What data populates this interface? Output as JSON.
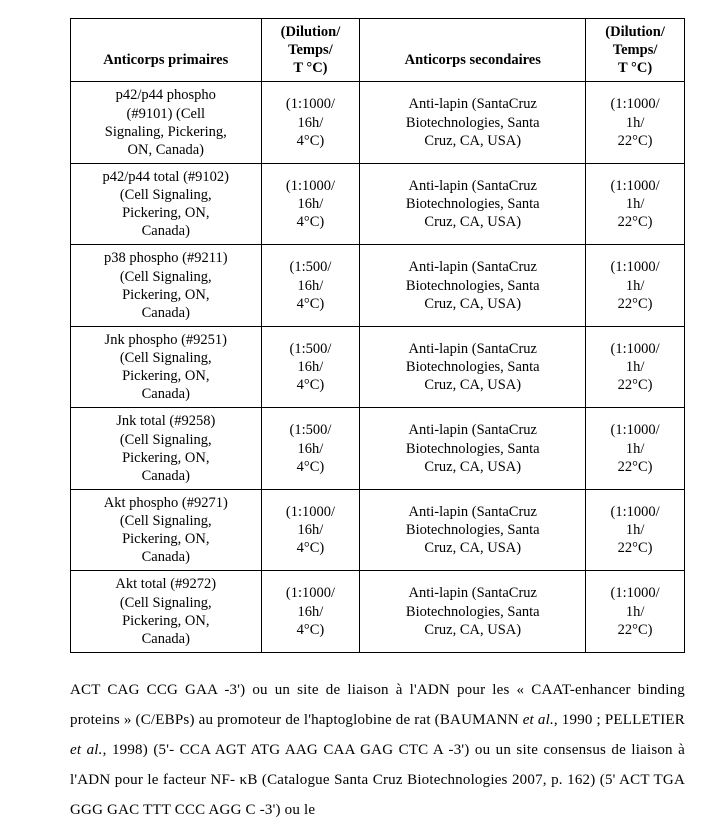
{
  "table": {
    "header": {
      "col1_line2": "Anticorps primaires",
      "col2_line1": "(Dilution/",
      "col2_line2": "Temps/",
      "col2_line3": "T °C)",
      "col3_line2": "Anticorps secondaires",
      "col4_line1": "(Dilution/",
      "col4_line2": "Temps/",
      "col4_line3": "T °C)"
    },
    "rows": [
      {
        "c1_l1": "p42/p44 phospho",
        "c1_l2": "(#9101) (Cell",
        "c1_l3": "Signaling, Pickering,",
        "c1_l4": "ON, Canada)",
        "c2_l1": "(1:1000/",
        "c2_l2": "16h/",
        "c2_l3": "4°C)",
        "c3_l1": "Anti-lapin (SantaCruz",
        "c3_l2": "Biotechnologies, Santa",
        "c3_l3": "Cruz, CA, USA)",
        "c4_l1": "(1:1000/",
        "c4_l2": "1h/",
        "c4_l3": "22°C)"
      },
      {
        "c1_l1": "p42/p44 total (#9102)",
        "c1_l2": "(Cell Signaling,",
        "c1_l3": "Pickering, ON,",
        "c1_l4": "Canada)",
        "c2_l1": "(1:1000/",
        "c2_l2": "16h/",
        "c2_l3": "4°C)",
        "c3_l1": "Anti-lapin (SantaCruz",
        "c3_l2": "Biotechnologies, Santa",
        "c3_l3": "Cruz, CA, USA)",
        "c4_l1": "(1:1000/",
        "c4_l2": "1h/",
        "c4_l3": "22°C)"
      },
      {
        "c1_l1": "p38 phospho (#9211)",
        "c1_l2": "(Cell Signaling,",
        "c1_l3": "Pickering, ON,",
        "c1_l4": "Canada)",
        "c2_l1": "(1:500/",
        "c2_l2": "16h/",
        "c2_l3": "4°C)",
        "c3_l1": "Anti-lapin (SantaCruz",
        "c3_l2": "Biotechnologies, Santa",
        "c3_l3": "Cruz, CA, USA)",
        "c4_l1": "(1:1000/",
        "c4_l2": "1h/",
        "c4_l3": "22°C)"
      },
      {
        "c1_l1": "Jnk phospho (#9251)",
        "c1_l2": "(Cell Signaling,",
        "c1_l3": "Pickering, ON,",
        "c1_l4": "Canada)",
        "c2_l1": "(1:500/",
        "c2_l2": "16h/",
        "c2_l3": "4°C)",
        "c3_l1": "Anti-lapin (SantaCruz",
        "c3_l2": "Biotechnologies, Santa",
        "c3_l3": "Cruz, CA, USA)",
        "c4_l1": "(1:1000/",
        "c4_l2": "1h/",
        "c4_l3": "22°C)"
      },
      {
        "c1_l1": "Jnk total (#9258)",
        "c1_l2": "(Cell Signaling,",
        "c1_l3": "Pickering, ON,",
        "c1_l4": "Canada)",
        "c2_l1": "(1:500/",
        "c2_l2": "16h/",
        "c2_l3": "4°C)",
        "c3_l1": "Anti-lapin (SantaCruz",
        "c3_l2": "Biotechnologies, Santa",
        "c3_l3": "Cruz, CA, USA)",
        "c4_l1": "(1:1000/",
        "c4_l2": "1h/",
        "c4_l3": "22°C)"
      },
      {
        "c1_l1": "Akt phospho (#9271)",
        "c1_l2": "(Cell Signaling,",
        "c1_l3": "Pickering, ON,",
        "c1_l4": "Canada)",
        "c2_l1": "(1:1000/",
        "c2_l2": "16h/",
        "c2_l3": "4°C)",
        "c3_l1": "Anti-lapin (SantaCruz",
        "c3_l2": "Biotechnologies, Santa",
        "c3_l3": "Cruz, CA, USA)",
        "c4_l1": "(1:1000/",
        "c4_l2": "1h/",
        "c4_l3": "22°C)"
      },
      {
        "c1_l1": "Akt total (#9272)",
        "c1_l2": "(Cell Signaling,",
        "c1_l3": "Pickering, ON,",
        "c1_l4": "Canada)",
        "c2_l1": "(1:1000/",
        "c2_l2": "16h/",
        "c2_l3": "4°C)",
        "c3_l1": "Anti-lapin (SantaCruz",
        "c3_l2": "Biotechnologies, Santa",
        "c3_l3": "Cruz, CA, USA)",
        "c4_l1": "(1:1000/",
        "c4_l2": "1h/",
        "c4_l3": "22°C)"
      }
    ]
  },
  "paragraph": {
    "seg1": "ACT CAG CCG GAA -3') ou un site de liaison à l'ADN pour les « CAAT-enhancer binding proteins » (C/EBPs) au promoteur de l'haptoglobine de rat (BAUMANN ",
    "seg2_italic": "et al.",
    "seg3": ", 1990 ; PELLETIER ",
    "seg4_italic": "et al.",
    "seg5": ", 1998) (5'- CCA AGT ATG AAG CAA GAG CTC A -3') ou un site consensus de liaison à l'ADN pour le facteur NF- κB (Catalogue Santa Cruz Biotechnologies 2007, p. 162) (5' ACT TGA GGG GAC TTT CCC AGG C -3') ou le"
  }
}
